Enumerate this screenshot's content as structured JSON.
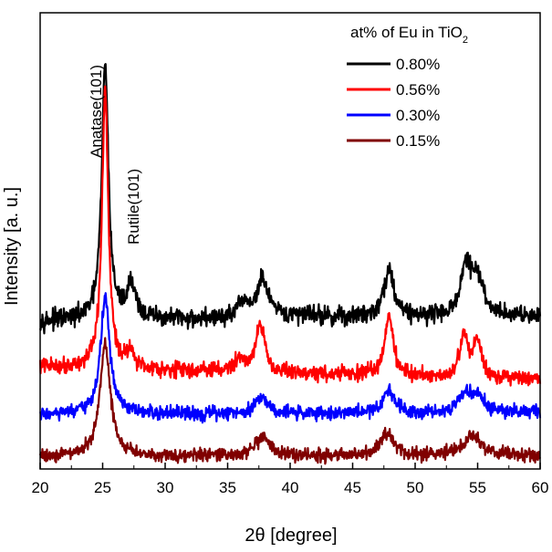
{
  "chart_data": {
    "type": "line",
    "title": "",
    "xlabel": "2θ [degree]",
    "ylabel": "Intensity [a. u.]",
    "xlim": [
      20,
      60
    ],
    "xticks": [
      20,
      25,
      30,
      35,
      40,
      45,
      50,
      55,
      60
    ],
    "y_ticks_labeled": false,
    "legend": {
      "title_main": "at% of Eu in TiO",
      "title_sub": "2",
      "placement": "top-right"
    },
    "annotations": [
      {
        "text": "Anatase(101)",
        "x": 24.9
      },
      {
        "text": "Rutile(101)",
        "x": 27.4
      }
    ],
    "series": [
      {
        "name": "0.80%",
        "color": "#000000",
        "baseline": 14,
        "noise": 2.0,
        "offset_data_units": 2.0,
        "peaks": [
          {
            "x": 25.2,
            "height": 88,
            "width": 0.32
          },
          {
            "x": 27.3,
            "height": 12,
            "width": 0.42
          },
          {
            "x": 36.3,
            "height": 5,
            "width": 0.5
          },
          {
            "x": 37.8,
            "height": 13,
            "width": 0.55
          },
          {
            "x": 41.5,
            "height": 2,
            "width": 0.5
          },
          {
            "x": 47.9,
            "height": 16,
            "width": 0.5
          },
          {
            "x": 54.1,
            "height": 17,
            "width": 0.5
          },
          {
            "x": 55.0,
            "height": 12,
            "width": 0.5
          }
        ]
      },
      {
        "name": "0.56%",
        "color": "#ff0000",
        "baseline": 11,
        "noise": 1.7,
        "offset_data_units": -4.5,
        "peaks": [
          {
            "x": 25.2,
            "height": 95,
            "width": 0.3
          },
          {
            "x": 27.2,
            "height": 6,
            "width": 0.35
          },
          {
            "x": 36.0,
            "height": 4,
            "width": 0.5
          },
          {
            "x": 37.6,
            "height": 17,
            "width": 0.42
          },
          {
            "x": 47.9,
            "height": 21,
            "width": 0.4
          },
          {
            "x": 53.9,
            "height": 14,
            "width": 0.38
          },
          {
            "x": 55.0,
            "height": 13,
            "width": 0.38
          }
        ]
      },
      {
        "name": "0.30%",
        "color": "#0000ff",
        "baseline": 10,
        "noise": 1.5,
        "offset_data_units": 1.0,
        "peaks": [
          {
            "x": 25.2,
            "height": 40,
            "width": 0.45
          },
          {
            "x": 37.7,
            "height": 6,
            "width": 0.6
          },
          {
            "x": 47.9,
            "height": 8,
            "width": 0.55
          },
          {
            "x": 54.0,
            "height": 6,
            "width": 0.6
          },
          {
            "x": 55.0,
            "height": 5,
            "width": 0.6
          }
        ]
      },
      {
        "name": "0.15%",
        "color": "#800000",
        "baseline": 9,
        "noise": 1.4,
        "offset_data_units": 0.0,
        "peaks": [
          {
            "x": 25.2,
            "height": 38,
            "width": 0.5
          },
          {
            "x": 37.8,
            "height": 6,
            "width": 0.7
          },
          {
            "x": 47.8,
            "height": 8,
            "width": 0.6
          },
          {
            "x": 54.6,
            "height": 7,
            "width": 0.9
          }
        ]
      }
    ]
  }
}
